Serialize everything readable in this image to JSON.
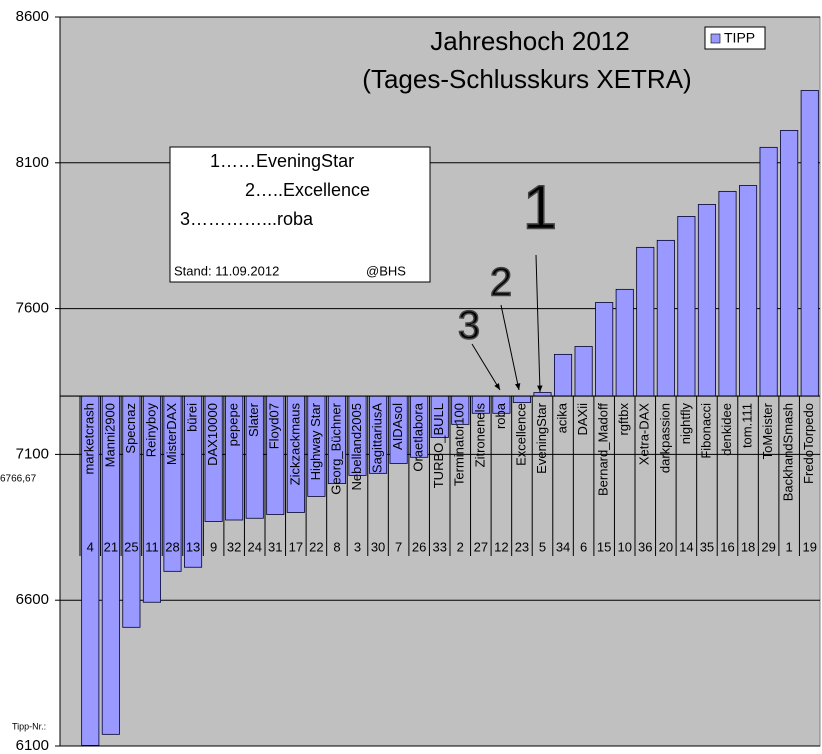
{
  "chart_data": {
    "type": "bar",
    "title": "Jahreshoch 2012",
    "subtitle": "(Tages-Schlusskurs XETRA)",
    "categories": [
      "marketcrash",
      "Manni2900",
      "Specnaz",
      "Reinyboy",
      "MisterDAX",
      "bürei",
      "DAX10000",
      "pepepe",
      "Slater",
      "Floyd07",
      "Zickzackmaus",
      "Highway Star",
      "Georg_Büchner",
      "Nebelland2005",
      "SagittariusA",
      "AIDAsol",
      "Oraetlabora",
      "TURBO_BULL",
      "Terminator100",
      "Zitronenels",
      "roba",
      "Excellence",
      "EveningStar",
      "acika",
      "DAXii",
      "Bernard_Madoff",
      "rgftbx",
      "Xetra-DAX",
      "darkpassion",
      "nightfly",
      "Fibonacci",
      "denkidee",
      "tom.111",
      "ToMeister",
      "BackhandSmash",
      "FredoTorpedo"
    ],
    "tipp_numbers": [
      "4",
      "21",
      "25",
      "11",
      "28",
      "13",
      "9",
      "32",
      "24",
      "31",
      "17",
      "22",
      "8",
      "3",
      "30",
      "7",
      "26",
      "33",
      "2",
      "27",
      "12",
      "23",
      "5",
      "34",
      "6",
      "15",
      "10",
      "36",
      "20",
      "14",
      "35",
      "16",
      "18",
      "29",
      "1",
      "19"
    ],
    "tipp_numbers_label": "Tipp-Nr.:",
    "series": [
      {
        "name": "TIPP",
        "color": "#9999ff",
        "values": [
          6102,
          6140,
          6507,
          6593,
          6699,
          6713,
          6870,
          6875,
          6881,
          6894,
          6901,
          6956,
          7000,
          7028,
          7035,
          7069,
          7090,
          7158,
          7203,
          7241,
          7241,
          7278,
          7312,
          7443,
          7470,
          7621,
          7666,
          7810,
          7834,
          7916,
          7957,
          8002,
          8022,
          8153,
          8211,
          8348
        ]
      }
    ],
    "ylim": [
      6100,
      8600
    ],
    "yticks": [
      6100,
      6600,
      7100,
      7600,
      8100,
      8600
    ],
    "x_axis_crosses": 7300,
    "axis_annotation": "6766,67",
    "grid": true,
    "legend": "top-right",
    "ranking": [
      "1……EveningStar",
      "2…..Excellence",
      "3…………...roba"
    ],
    "stand": "Stand: 11.09.2012",
    "credit": "@BHS",
    "markers": [
      "1",
      "2",
      "3"
    ]
  }
}
